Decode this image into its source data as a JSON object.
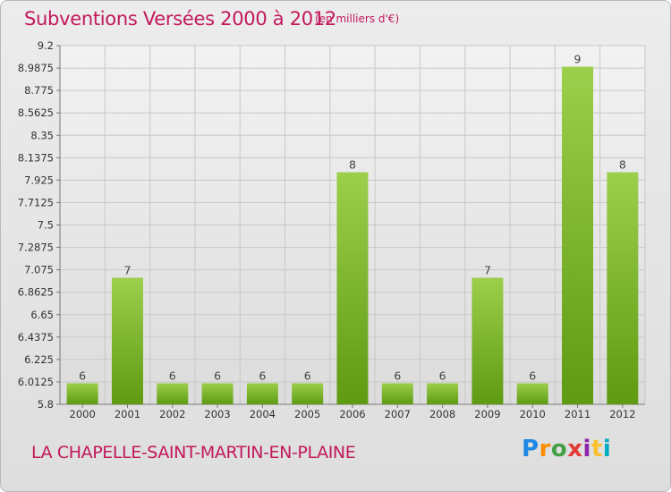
{
  "header": {
    "title": "Subventions Versées 2000 à 2012",
    "unit_note": "(en milliers d'€)"
  },
  "footer": {
    "commune": "LA CHAPELLE-SAINT-MARTIN-EN-PLAINE",
    "logo_text": "Proxiti"
  },
  "colors": {
    "title": "#c2185b",
    "bar_top": "#9ccf4c",
    "bar_bottom": "#5e9a12",
    "grid": "#c8c8c8"
  },
  "chart_data": {
    "type": "bar",
    "title": "Subventions Versées 2000 à 2012",
    "xlabel": "",
    "ylabel": "",
    "categories": [
      "2000",
      "2001",
      "2002",
      "2003",
      "2004",
      "2005",
      "2006",
      "2007",
      "2008",
      "2009",
      "2010",
      "2011",
      "2012"
    ],
    "values": [
      6,
      7,
      6,
      6,
      6,
      6,
      8,
      6,
      6,
      7,
      6,
      9,
      8
    ],
    "data_labels": [
      "6",
      "7",
      "6",
      "6",
      "6",
      "6",
      "8",
      "6",
      "6",
      "7",
      "6",
      "9",
      "8"
    ],
    "ylim": [
      5.8,
      9.2
    ],
    "y_ticks": [
      "5.8",
      "6.0125",
      "6.225",
      "6.4375",
      "6.65",
      "6.8625",
      "7.075",
      "7.2875",
      "7.5",
      "7.7125",
      "7.925",
      "8.1375",
      "8.35",
      "8.5625",
      "8.775",
      "8.9875",
      "9.2"
    ],
    "grid": true
  }
}
